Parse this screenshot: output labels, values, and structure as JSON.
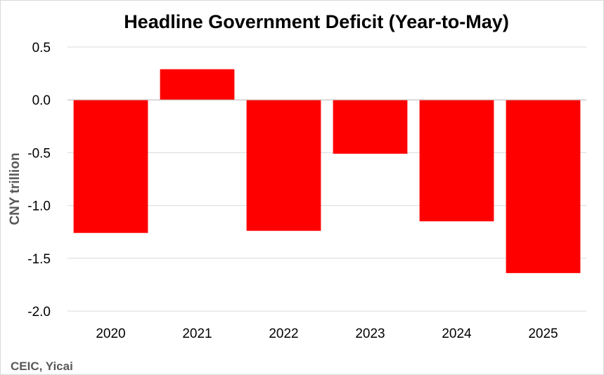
{
  "chart_data": {
    "type": "bar",
    "title": "Headline Government Deficit (Year-to-May)",
    "xlabel": "",
    "ylabel": "CNY trillion",
    "categories": [
      "2020",
      "2021",
      "2022",
      "2023",
      "2024",
      "2025"
    ],
    "values": [
      -1.26,
      0.29,
      -1.24,
      -0.51,
      -1.15,
      -1.64
    ],
    "ylim": [
      -2.0,
      0.5
    ],
    "yticks": [
      0.5,
      0.0,
      -0.5,
      -1.0,
      -1.5,
      -2.0
    ],
    "ytick_labels": [
      "0.5",
      "0.0",
      "-0.5",
      "-1.0",
      "-1.5",
      "-2.0"
    ],
    "grid": true,
    "legend": false,
    "colors": {
      "bar": "#ff0000",
      "grid": "#d9d9d9",
      "axis": "#bfbfbf",
      "text": "#000000",
      "muted_text": "#595959"
    },
    "source": "CEIC, Yicai"
  }
}
